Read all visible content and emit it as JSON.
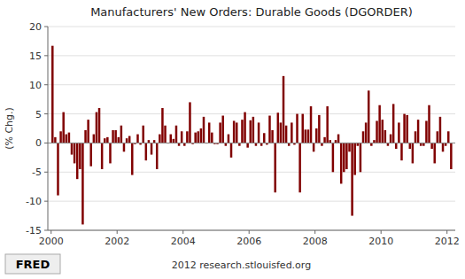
{
  "chart_data": {
    "type": "bar",
    "title": "Manufacturers' New Orders: Durable Goods (DGORDER)",
    "y_label": "(% Chg.)",
    "annotations": [
      "FRED",
      "2012 research.stlouisfed.org"
    ],
    "color": "#800000",
    "grid": true,
    "xlim": [
      1999.9,
      2012.25
    ],
    "xticks": [
      2000,
      2002,
      2004,
      2006,
      2008,
      2010,
      2012
    ],
    "ylim": [
      -15,
      20
    ],
    "yticks": [
      -15,
      -10,
      -5,
      0,
      5,
      10,
      15,
      20
    ],
    "x": [
      2000.0417,
      2000.125,
      2000.208,
      2000.292,
      2000.375,
      2000.458,
      2000.542,
      2000.625,
      2000.708,
      2000.792,
      2000.875,
      2000.958,
      2001.042,
      2001.125,
      2001.208,
      2001.292,
      2001.375,
      2001.458,
      2001.542,
      2001.625,
      2001.708,
      2001.792,
      2001.875,
      2001.958,
      2002.042,
      2002.125,
      2002.208,
      2002.292,
      2002.375,
      2002.458,
      2002.542,
      2002.625,
      2002.708,
      2002.792,
      2002.875,
      2002.958,
      2003.042,
      2003.125,
      2003.208,
      2003.292,
      2003.375,
      2003.458,
      2003.542,
      2003.625,
      2003.708,
      2003.792,
      2003.875,
      2003.958,
      2004.042,
      2004.125,
      2004.208,
      2004.292,
      2004.375,
      2004.458,
      2004.542,
      2004.625,
      2004.708,
      2004.792,
      2004.875,
      2004.958,
      2005.042,
      2005.125,
      2005.208,
      2005.292,
      2005.375,
      2005.458,
      2005.542,
      2005.625,
      2005.708,
      2005.792,
      2005.875,
      2005.958,
      2006.042,
      2006.125,
      2006.208,
      2006.292,
      2006.375,
      2006.458,
      2006.542,
      2006.625,
      2006.708,
      2006.792,
      2006.875,
      2006.958,
      2007.042,
      2007.125,
      2007.208,
      2007.292,
      2007.375,
      2007.458,
      2007.542,
      2007.625,
      2007.708,
      2007.792,
      2007.875,
      2007.958,
      2008.042,
      2008.125,
      2008.208,
      2008.292,
      2008.375,
      2008.458,
      2008.542,
      2008.625,
      2008.708,
      2008.792,
      2008.875,
      2008.958,
      2009.042,
      2009.125,
      2009.208,
      2009.292,
      2009.375,
      2009.458,
      2009.542,
      2009.625,
      2009.708,
      2009.792,
      2009.875,
      2009.958,
      2010.042,
      2010.125,
      2010.208,
      2010.292,
      2010.375,
      2010.458,
      2010.542,
      2010.625,
      2010.708,
      2010.792,
      2010.875,
      2010.958,
      2011.042,
      2011.125,
      2011.208,
      2011.292,
      2011.375,
      2011.458,
      2011.542,
      2011.625,
      2011.708,
      2011.792,
      2011.875,
      2011.958,
      2012.042,
      2012.125
    ],
    "values": [
      16.7,
      1.0,
      -9.0,
      2.0,
      5.3,
      1.5,
      1.8,
      -2.0,
      -3.5,
      -6.2,
      -4.5,
      -14.0,
      2.2,
      4.0,
      -4.0,
      1.5,
      5.3,
      6.0,
      -4.5,
      0.8,
      1.0,
      -3.5,
      2.2,
      2.2,
      1.0,
      3.0,
      -1.5,
      0.8,
      1.2,
      -5.5,
      -0.2,
      1.5,
      -0.3,
      3.0,
      -3.0,
      0.5,
      -2.0,
      0.5,
      -4.5,
      1.5,
      6.0,
      3.0,
      -0.1,
      1.5,
      0.7,
      3.0,
      -0.5,
      2.0,
      -0.5,
      2.0,
      7.0,
      -0.2,
      1.8,
      2.0,
      2.5,
      4.5,
      -0.1,
      3.5,
      1.8,
      -0.2,
      -0.2,
      3.5,
      4.7,
      -0.5,
      1.5,
      -2.5,
      3.8,
      3.5,
      -0.5,
      4.0,
      5.3,
      -0.8,
      3.9,
      4.5,
      -0.5,
      3.5,
      -0.5,
      1.7,
      -0.3,
      4.7,
      2.2,
      -8.5,
      5.2,
      3.5,
      11.5,
      3.0,
      -0.5,
      3.5,
      -0.3,
      5.0,
      -8.5,
      5.0,
      2.3,
      2.3,
      6.3,
      -1.5,
      2.5,
      4.8,
      -0.5,
      1.0,
      6.3,
      0.5,
      -5.0,
      0.5,
      1.5,
      -7.0,
      -5.0,
      -4.5,
      -1.5,
      -12.5,
      -5.5,
      -0.5,
      -5.0,
      2.0,
      3.5,
      9.0,
      -0.5,
      0.5,
      3.8,
      6.5,
      4.0,
      2.2,
      -0.5,
      1.5,
      6.7,
      -1.0,
      3.5,
      -3.0,
      5.0,
      4.8,
      -1.0,
      -3.5,
      2.0,
      4.0,
      -0.5,
      -0.5,
      3.8,
      6.5,
      -1.0,
      -3.5,
      2.0,
      4.5,
      -1.5,
      -0.5,
      2.0,
      -4.5
    ]
  }
}
